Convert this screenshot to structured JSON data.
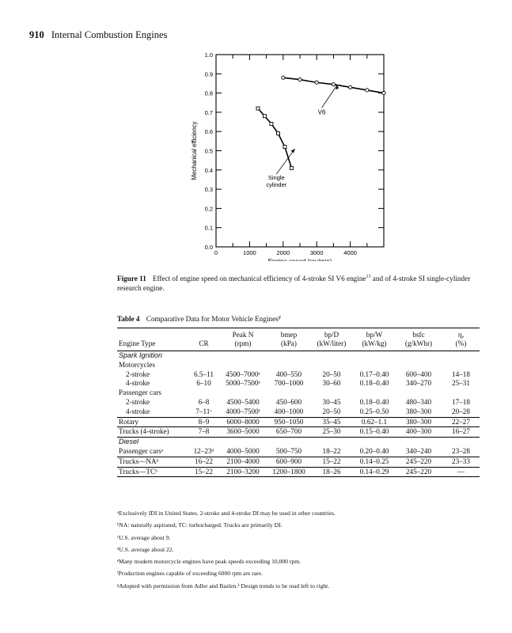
{
  "header": {
    "page_number": "910",
    "running_title": "Internal Combustion Engines"
  },
  "chart_data": {
    "type": "line",
    "title": "",
    "xlabel": "Engine speed (rev/min)",
    "ylabel": "Mechanical efficiency",
    "xlim": [
      0,
      5000
    ],
    "ylim": [
      0.0,
      1.0
    ],
    "x_ticks": [
      "0",
      "1000",
      "2000",
      "3000",
      "4000"
    ],
    "y_ticks": [
      "0.0",
      "0.1",
      "0.2",
      "0.3",
      "0.4",
      "0.5",
      "0.6",
      "0.7",
      "0.8",
      "0.9",
      "1.0"
    ],
    "grid": false,
    "series": [
      {
        "name": "V6",
        "marker": "circle",
        "x": [
          2000,
          2500,
          3000,
          3500,
          4000,
          4500,
          5000
        ],
        "y": [
          0.88,
          0.87,
          0.855,
          0.845,
          0.83,
          0.815,
          0.8
        ]
      },
      {
        "name": "Single cylinder",
        "marker": "square",
        "x": [
          1250,
          1450,
          1650,
          1850,
          2050,
          2250
        ],
        "y": [
          0.72,
          0.68,
          0.64,
          0.59,
          0.52,
          0.41
        ]
      }
    ],
    "annotations": [
      "V6",
      "Single",
      "cylinder"
    ]
  },
  "caption": {
    "label": "Figure 11",
    "text": "Effect of engine speed on mechanical efficiency of 4-stroke SI V6 engine",
    "ref": "13",
    "text2": " and of 4-stroke SI single-cylinder research engine."
  },
  "table": {
    "label": "Table 4",
    "title": "Comparative Data for Motor Vehicle Engines",
    "title_mark": "g",
    "headers": {
      "engine_type": "Engine Type",
      "cr": "CR",
      "peak_n": [
        "Peak N",
        "(rpm)"
      ],
      "bmep": [
        "bmep",
        "(kPa)"
      ],
      "bpd": [
        "bp/D",
        "(kW/liter)"
      ],
      "bpw": [
        "bp/W",
        "(kW/kg)"
      ],
      "bsfc": [
        "bsfc",
        "(g/kWhr)"
      ],
      "eta": [
        "ηₑ",
        "(%)"
      ]
    },
    "rows": [
      {
        "kind": "section",
        "label": "Spark Ignition"
      },
      {
        "kind": "group",
        "label": "Motorcycles"
      },
      {
        "kind": "data",
        "indent": true,
        "cells": [
          "2-stroke",
          "6.5–11",
          "4500–7000ᵉ",
          "400–550",
          "20–50",
          "0.17–0.40",
          "600–400",
          "14–18"
        ]
      },
      {
        "kind": "data",
        "indent": true,
        "cells": [
          "4-stroke",
          "6–10",
          "5000–7500ᵉ",
          "700–1000",
          "30–60",
          "0.18–0.40",
          "340–270",
          "25–31"
        ]
      },
      {
        "kind": "group",
        "label": "Passenger cars"
      },
      {
        "kind": "data",
        "indent": true,
        "cells": [
          "2-stroke",
          "6–8",
          "4500–5400",
          "450–600",
          "30–45",
          "0.18–0.40",
          "480–340",
          "17–18"
        ]
      },
      {
        "kind": "data",
        "indent": true,
        "cells": [
          "4-stroke",
          "7–11ᶜ",
          "4000–7500ᶠ",
          "400–1000",
          "20–50",
          "0.25–0.50",
          "380–300",
          "20–28"
        ]
      },
      {
        "kind": "data",
        "indent": false,
        "sep": true,
        "cells": [
          "Rotary",
          "8–9",
          "6000–8000",
          "950–1050",
          "35–45",
          "0.62–1.1",
          "380–300",
          "22–27"
        ]
      },
      {
        "kind": "data",
        "indent": false,
        "sep": true,
        "cells": [
          "Trucks (4-stroke)",
          "7–8",
          "3600–5000",
          "650–700",
          "25–30",
          "0.15–0.40",
          "400–300",
          "16–27"
        ]
      },
      {
        "kind": "section",
        "label": "Diesel",
        "sep": true
      },
      {
        "kind": "data",
        "indent": false,
        "cells": [
          "Passenger carsᵃ",
          "12–23ᵈ",
          "4000–5000",
          "500–750",
          "18–22",
          "0.20–0.40",
          "340–240",
          "23–28"
        ]
      },
      {
        "kind": "data",
        "indent": false,
        "sep": true,
        "cells": [
          "Trucks—NAᵇ",
          "16–22",
          "2100–4000",
          "600–900",
          "15–22",
          "0.14–0.25",
          "245–220",
          "23–33"
        ]
      },
      {
        "kind": "data",
        "indent": false,
        "sep": true,
        "last": true,
        "cells": [
          "Trucks—TCᵇ",
          "15–22",
          "2100–3200",
          "1200–1800",
          "18–26",
          "0.14–0.29",
          "245–220",
          "—"
        ]
      }
    ]
  },
  "footnotes": [
    "ᵃExclusively IDI in United States. 2-stroke and 4-stroke DI may be used in other countries.",
    "ᵇNA: naturally aspirated, TC: turbocharged. Trucks are primarily DI.",
    "ᶜU.S. average about 9.",
    "ᵈU.S. average about 22.",
    "ᵉMany modern motorcycle engines have peak speeds exceeding 10,000 rpm.",
    "ᶠProduction engines capable of exceeding 6000 rpm are rare.",
    "ᵍAdopted with permission from Adler and Bazlen.³ Design trends to be read left to right."
  ]
}
